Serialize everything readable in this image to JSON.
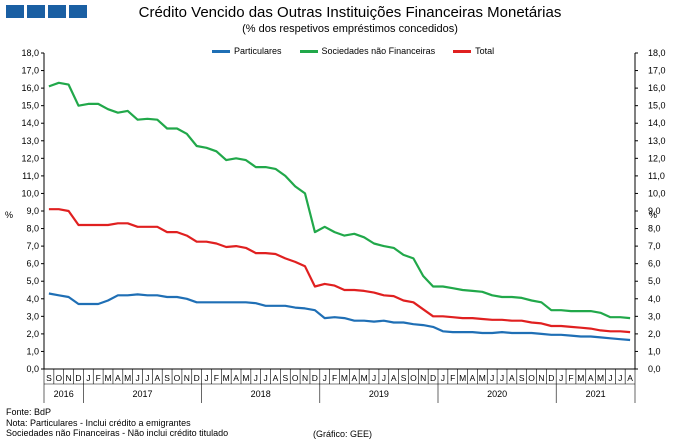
{
  "logo": {
    "icon": "bdp-logo-squares"
  },
  "chart_data": {
    "type": "line",
    "title": "Crédito Vencido das Outras Instituições Financeiras Monetárias",
    "subtitle": "(% dos respetivos empréstimos concedidos)",
    "ylabel": "%",
    "ylabel_right": "%",
    "ylim": [
      0,
      18
    ],
    "yticks": [
      "0,0",
      "1,0",
      "2,0",
      "3,0",
      "4,0",
      "5,0",
      "6,0",
      "7,0",
      "8,0",
      "9,0",
      "10,0",
      "11,0",
      "12,0",
      "13,0",
      "14,0",
      "15,0",
      "16,0",
      "17,0",
      "18,0"
    ],
    "grid": false,
    "legend_position": "top",
    "month_letters": [
      "S",
      "O",
      "N",
      "D",
      "J",
      "F",
      "M",
      "A",
      "M",
      "J",
      "J",
      "A",
      "S",
      "O",
      "N",
      "D",
      "J",
      "F",
      "M",
      "A",
      "M",
      "J",
      "J",
      "A",
      "S",
      "O",
      "N",
      "D",
      "J",
      "F",
      "M",
      "A",
      "M",
      "J",
      "J",
      "A",
      "S",
      "O",
      "N",
      "D",
      "J",
      "F",
      "M",
      "A",
      "M",
      "J",
      "J",
      "A",
      "S",
      "O",
      "N",
      "D",
      "J",
      "F",
      "M",
      "A",
      "M",
      "J",
      "J",
      "A"
    ],
    "years": [
      {
        "label": "2016",
        "start": 0,
        "end": 4
      },
      {
        "label": "2017",
        "start": 4,
        "end": 16
      },
      {
        "label": "2018",
        "start": 16,
        "end": 28
      },
      {
        "label": "2019",
        "start": 28,
        "end": 40
      },
      {
        "label": "2020",
        "start": 40,
        "end": 52
      },
      {
        "label": "2021",
        "start": 52,
        "end": 60
      }
    ],
    "series": [
      {
        "name": "Particulares",
        "color": "#1f6fb5",
        "values": [
          4.3,
          4.2,
          4.1,
          3.7,
          3.7,
          3.7,
          3.9,
          4.2,
          4.2,
          4.25,
          4.2,
          4.2,
          4.1,
          4.1,
          4.0,
          3.8,
          3.8,
          3.8,
          3.8,
          3.8,
          3.8,
          3.75,
          3.6,
          3.6,
          3.6,
          3.5,
          3.45,
          3.35,
          2.9,
          2.95,
          2.9,
          2.75,
          2.75,
          2.7,
          2.75,
          2.65,
          2.65,
          2.55,
          2.5,
          2.4,
          2.15,
          2.1,
          2.1,
          2.1,
          2.05,
          2.05,
          2.1,
          2.05,
          2.05,
          2.05,
          2.0,
          1.95,
          1.95,
          1.9,
          1.85,
          1.85,
          1.8,
          1.75,
          1.7,
          1.65
        ]
      },
      {
        "name": "Sociedades não Financeiras",
        "color": "#21a84a",
        "values": [
          16.1,
          16.3,
          16.2,
          15.0,
          15.1,
          15.1,
          14.8,
          14.6,
          14.7,
          14.2,
          14.25,
          14.2,
          13.7,
          13.7,
          13.4,
          12.7,
          12.6,
          12.4,
          11.9,
          12.0,
          11.9,
          11.5,
          11.5,
          11.4,
          11.0,
          10.4,
          10.0,
          7.8,
          8.1,
          7.8,
          7.6,
          7.7,
          7.5,
          7.15,
          7.0,
          6.9,
          6.5,
          6.3,
          5.3,
          4.7,
          4.7,
          4.6,
          4.5,
          4.45,
          4.4,
          4.2,
          4.1,
          4.1,
          4.05,
          3.9,
          3.8,
          3.35,
          3.35,
          3.3,
          3.3,
          3.3,
          3.2,
          2.95,
          2.95,
          2.9
        ]
      },
      {
        "name": "Total",
        "color": "#e02020",
        "values": [
          9.1,
          9.1,
          9.0,
          8.2,
          8.2,
          8.2,
          8.2,
          8.3,
          8.3,
          8.1,
          8.1,
          8.1,
          7.8,
          7.8,
          7.6,
          7.25,
          7.25,
          7.15,
          6.95,
          7.0,
          6.9,
          6.6,
          6.6,
          6.55,
          6.3,
          6.1,
          5.85,
          4.7,
          4.85,
          4.75,
          4.5,
          4.5,
          4.45,
          4.35,
          4.2,
          4.15,
          3.9,
          3.8,
          3.4,
          3.0,
          3.0,
          2.95,
          2.9,
          2.9,
          2.85,
          2.8,
          2.8,
          2.75,
          2.75,
          2.65,
          2.6,
          2.45,
          2.45,
          2.4,
          2.35,
          2.3,
          2.2,
          2.15,
          2.15,
          2.1
        ]
      }
    ]
  },
  "footer": {
    "source": "Fonte: BdP",
    "note1": "Nota: Particulares - Inclui crédito a emigrantes",
    "note2": "Sociedades não Financeiras - Não inclui crédito titulado",
    "credit": "(Gráfico: GEE)"
  }
}
